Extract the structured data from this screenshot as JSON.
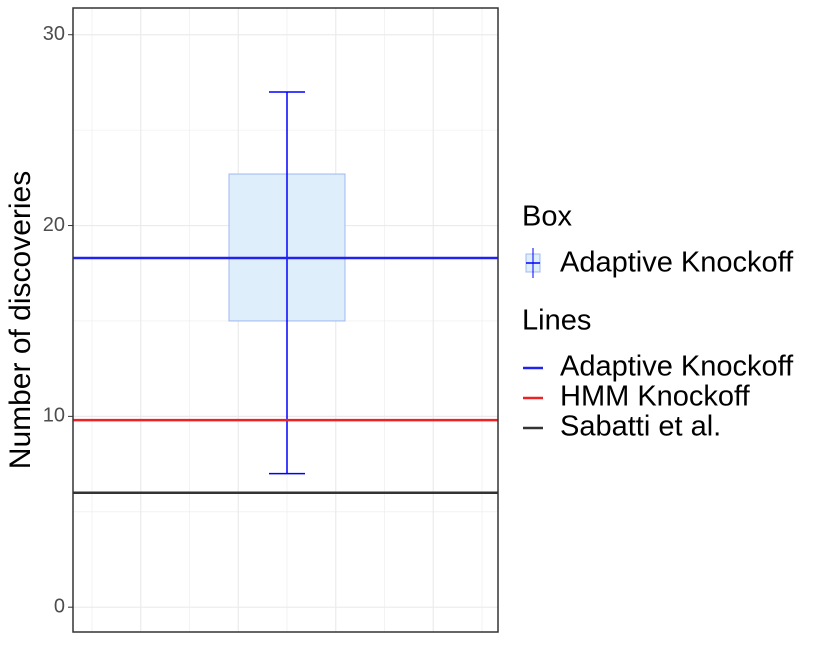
{
  "chart_data": {
    "type": "box",
    "y_label": "Number of discoveries",
    "ylim": [
      -1.3,
      31.4
    ],
    "yticks": [
      0,
      10,
      20,
      30
    ],
    "minor_yticks": [
      5,
      15,
      25
    ],
    "grid": true,
    "box": {
      "name": "Adaptive Knockoff",
      "color": "#0000ff",
      "fill": "#deeefb",
      "whisker_low": 7,
      "q1": 15,
      "median": 18.3,
      "q3": 22.7,
      "whisker_high": 27
    },
    "lines": [
      {
        "name": "Adaptive Knockoff",
        "color": "#2222ee",
        "value": 18.3
      },
      {
        "name": "HMM Knockoff",
        "color": "#ee2222",
        "value": 9.8
      },
      {
        "name": "Sabatti et al.",
        "color": "#333333",
        "value": 6
      }
    ],
    "legend": {
      "box_title": "Box",
      "lines_title": "Lines"
    }
  }
}
